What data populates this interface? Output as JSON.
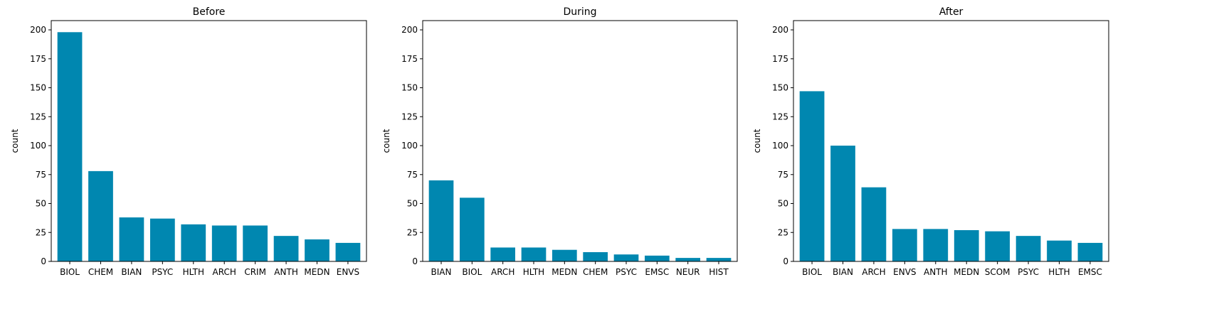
{
  "chart_data": [
    {
      "type": "bar",
      "title": "Before",
      "xlabel": "",
      "ylabel": "count",
      "ylim": [
        0,
        208
      ],
      "yticks": [
        0,
        25,
        50,
        75,
        100,
        125,
        150,
        175,
        200
      ],
      "categories": [
        "BIOL",
        "CHEM",
        "BIAN",
        "PSYC",
        "HLTH",
        "ARCH",
        "CRIM",
        "ANTH",
        "MEDN",
        "ENVS"
      ],
      "values": [
        198,
        78,
        38,
        37,
        32,
        31,
        31,
        22,
        19,
        16
      ],
      "bar_color": "#0087b0",
      "grid": false
    },
    {
      "type": "bar",
      "title": "During",
      "xlabel": "",
      "ylabel": "count",
      "ylim": [
        0,
        208
      ],
      "yticks": [
        0,
        25,
        50,
        75,
        100,
        125,
        150,
        175,
        200
      ],
      "categories": [
        "BIAN",
        "BIOL",
        "ARCH",
        "HLTH",
        "MEDN",
        "CHEM",
        "PSYC",
        "EMSC",
        "NEUR",
        "HIST"
      ],
      "values": [
        70,
        55,
        12,
        12,
        10,
        8,
        6,
        5,
        3,
        3
      ],
      "bar_color": "#0087b0",
      "grid": false
    },
    {
      "type": "bar",
      "title": "After",
      "xlabel": "",
      "ylabel": "count",
      "ylim": [
        0,
        208
      ],
      "yticks": [
        0,
        25,
        50,
        75,
        100,
        125,
        150,
        175,
        200
      ],
      "categories": [
        "BIOL",
        "BIAN",
        "ARCH",
        "ENVS",
        "ANTH",
        "MEDN",
        "SCOM",
        "PSYC",
        "HLTH",
        "EMSC"
      ],
      "values": [
        147,
        100,
        64,
        28,
        28,
        27,
        26,
        22,
        18,
        16
      ],
      "bar_color": "#0087b0",
      "grid": false
    }
  ]
}
